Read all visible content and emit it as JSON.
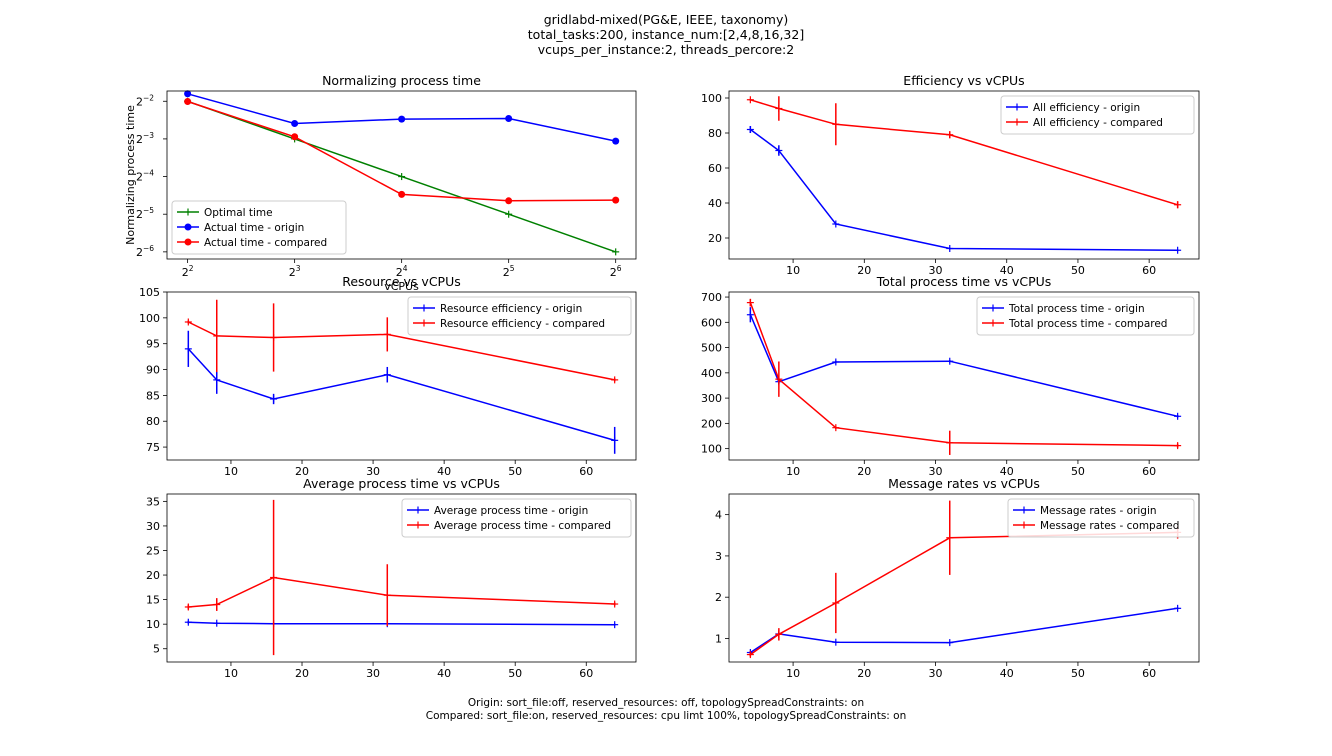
{
  "header": {
    "line1": "gridlabd-mixed(PG&E, IEEE, taxonomy)",
    "line2": "total_tasks:200, instance_num:[2,4,8,16,32]",
    "line3": "vcups_per_instance:2, threads_percore:2"
  },
  "footer": {
    "line1": "Origin: sort_file:off,  reserved_resources: off, topologySpreadConstraints: on",
    "line2": "Compared: sort_file:on,  reserved_resources: cpu limt 100%, topologySpreadConstraints: on"
  },
  "colors": {
    "origin": "#0000ff",
    "compared": "#ff0000",
    "optimal": "#008000"
  },
  "chart_data": [
    {
      "id": "norm",
      "type": "line",
      "title": "Normalizing process time",
      "xlabel": "vCPUs",
      "ylabel": "Normalizing process time",
      "xscale": "log2",
      "yscale": "log2",
      "xlim": [
        3.5,
        73
      ],
      "ylim": [
        0.0137,
        0.302
      ],
      "xticks": [
        4,
        8,
        16,
        32,
        64
      ],
      "xtick_labels": [
        [
          "2",
          "2"
        ],
        [
          "2",
          "3"
        ],
        [
          "2",
          "4"
        ],
        [
          "2",
          "5"
        ],
        [
          "2",
          "6"
        ]
      ],
      "yticks": [
        0.015625,
        0.03125,
        0.0625,
        0.125,
        0.25
      ],
      "ytick_labels": [
        [
          "2",
          "−6"
        ],
        [
          "2",
          "−5"
        ],
        [
          "2",
          "−4"
        ],
        [
          "2",
          "−3"
        ],
        [
          "2",
          "−2"
        ]
      ],
      "legend": "lower-left",
      "series": [
        {
          "name": "Optimal time",
          "color": "#008000",
          "marker": "plus",
          "x": [
            4,
            8,
            16,
            32,
            64
          ],
          "y": [
            0.25,
            0.125,
            0.0625,
            0.03125,
            0.015625
          ]
        },
        {
          "name": "Actual time - origin",
          "color": "#0000ff",
          "marker": "circle",
          "x": [
            4,
            8,
            16,
            32,
            64
          ],
          "y": [
            0.287,
            0.166,
            0.18,
            0.182,
            0.12
          ]
        },
        {
          "name": "Actual time - compared",
          "color": "#ff0000",
          "marker": "circle",
          "x": [
            4,
            8,
            16,
            32,
            64
          ],
          "y": [
            0.249,
            0.13,
            0.045,
            0.04,
            0.0405
          ]
        }
      ]
    },
    {
      "id": "eff",
      "type": "line",
      "title": "Efficiency vs vCPUs",
      "xlim": [
        1,
        67
      ],
      "ylim": [
        8,
        104
      ],
      "xticks": [
        10,
        20,
        30,
        40,
        50,
        60
      ],
      "yticks": [
        20,
        40,
        60,
        80,
        100
      ],
      "legend": "top-right",
      "series": [
        {
          "name": "All efficiency - origin",
          "color": "#0000ff",
          "x": [
            4,
            8,
            16,
            32,
            64
          ],
          "y": [
            82,
            70,
            28,
            14,
            13
          ],
          "err": [
            2,
            3,
            0.5,
            0.5,
            0.5
          ]
        },
        {
          "name": "All efficiency - compared",
          "color": "#ff0000",
          "x": [
            4,
            8,
            16,
            32,
            64
          ],
          "y": [
            99,
            94,
            85,
            79,
            39
          ],
          "err": [
            0.5,
            7,
            12,
            2,
            2
          ]
        }
      ]
    },
    {
      "id": "res",
      "type": "line",
      "title": "Resource vs vCPUs",
      "xlim": [
        1,
        67
      ],
      "ylim": [
        72.5,
        105
      ],
      "xticks": [
        10,
        20,
        30,
        40,
        50,
        60
      ],
      "yticks": [
        75,
        80,
        85,
        90,
        95,
        100,
        105
      ],
      "legend": "top-right",
      "series": [
        {
          "name": "Resource efficiency - origin",
          "color": "#0000ff",
          "x": [
            4,
            8,
            16,
            32,
            64
          ],
          "y": [
            94,
            88,
            84.3,
            89,
            76.3
          ],
          "err": [
            3.5,
            2.7,
            1,
            1.5,
            2.6
          ]
        },
        {
          "name": "Resource efficiency - compared",
          "color": "#ff0000",
          "x": [
            4,
            8,
            16,
            32,
            64
          ],
          "y": [
            99.2,
            96.5,
            96.2,
            96.8,
            88
          ],
          "err": [
            0.3,
            7,
            6.6,
            3.3,
            0.3
          ]
        }
      ]
    },
    {
      "id": "tot",
      "type": "line",
      "title": "Total process time vs vCPUs",
      "xlim": [
        1,
        67
      ],
      "ylim": [
        55,
        720
      ],
      "xticks": [
        10,
        20,
        30,
        40,
        50,
        60
      ],
      "yticks": [
        100,
        200,
        300,
        400,
        500,
        600,
        700
      ],
      "legend": "top-right",
      "series": [
        {
          "name": "Total process time - origin",
          "color": "#0000ff",
          "x": [
            4,
            8,
            16,
            32,
            64
          ],
          "y": [
            630,
            365,
            443,
            446,
            228
          ],
          "err": [
            30,
            10,
            5,
            5,
            5
          ]
        },
        {
          "name": "Total process time - compared",
          "color": "#ff0000",
          "x": [
            4,
            8,
            16,
            32,
            64
          ],
          "y": [
            678,
            375,
            183,
            123,
            112
          ],
          "err": [
            15,
            70,
            5,
            48,
            8
          ]
        }
      ]
    },
    {
      "id": "avg",
      "type": "line",
      "title": "Average process time vs vCPUs",
      "xlim": [
        1,
        67
      ],
      "ylim": [
        2.3,
        36.5
      ],
      "xticks": [
        10,
        20,
        30,
        40,
        50,
        60
      ],
      "yticks": [
        5,
        10,
        15,
        20,
        25,
        30,
        35
      ],
      "legend": "top-right",
      "series": [
        {
          "name": "Average process time - origin",
          "color": "#0000ff",
          "x": [
            4,
            8,
            16,
            32,
            64
          ],
          "y": [
            10.4,
            10.2,
            10.1,
            10.1,
            9.9
          ],
          "err": [
            0.3,
            0.2,
            0.2,
            0.2,
            0.2
          ]
        },
        {
          "name": "Average process time - compared",
          "color": "#ff0000",
          "x": [
            4,
            8,
            16,
            32,
            64
          ],
          "y": [
            13.5,
            14.0,
            19.5,
            15.9,
            14.1
          ],
          "err": [
            0.5,
            1.3,
            15.8,
            6.3,
            0.3
          ]
        }
      ]
    },
    {
      "id": "msg",
      "type": "line",
      "title": "Message rates vs vCPUs",
      "xlim": [
        1,
        67
      ],
      "ylim": [
        0.43,
        4.5
      ],
      "xticks": [
        10,
        20,
        30,
        40,
        50,
        60
      ],
      "yticks": [
        1,
        2,
        3,
        4
      ],
      "legend": "top-right",
      "series": [
        {
          "name": "Message rates - origin",
          "color": "#0000ff",
          "x": [
            4,
            8,
            16,
            32,
            64
          ],
          "y": [
            0.66,
            1.11,
            0.91,
            0.9,
            1.73
          ],
          "err": [
            0.03,
            0.03,
            0.02,
            0.02,
            0.02
          ]
        },
        {
          "name": "Message rates - compared",
          "color": "#ff0000",
          "x": [
            4,
            8,
            16,
            32,
            64
          ],
          "y": [
            0.61,
            1.1,
            1.86,
            3.44,
            3.57
          ],
          "err": [
            0.05,
            0.15,
            0.73,
            0.9,
            0.15
          ]
        }
      ]
    }
  ]
}
